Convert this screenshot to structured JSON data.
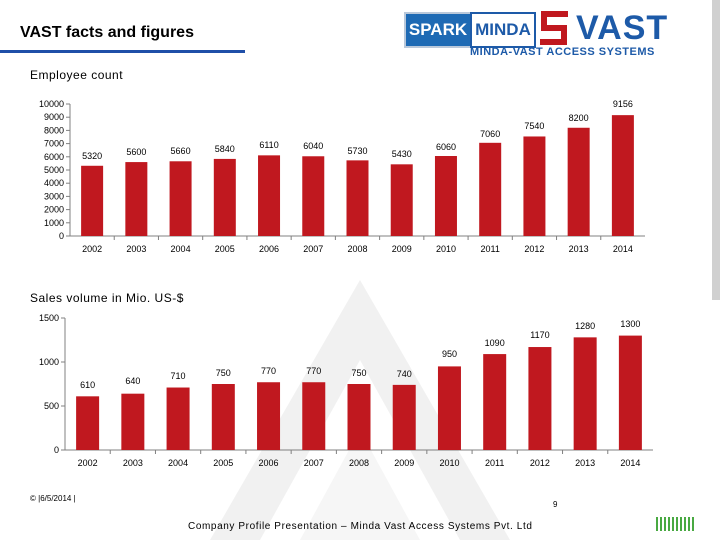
{
  "slide": {
    "title": "VAST facts and figures",
    "footer_date": "© |6/5/2014 |",
    "footer_page": "9",
    "footer_text": "Company Profile Presentation – Minda Vast Access Systems Pvt. Ltd"
  },
  "logo": {
    "spark": "SPARK",
    "minda": "MINDA",
    "vast": "VAST",
    "subtitle": "MINDA-VAST ACCESS SYSTEMS"
  },
  "colors": {
    "bar": "#c0181f",
    "accent_blue": "#1f4fa8",
    "axis": "#808080",
    "footer_green": "#49a942"
  },
  "chart_data": [
    {
      "type": "bar",
      "title": "Employee count",
      "categories": [
        "2002",
        "2003",
        "2004",
        "2005",
        "2006",
        "2007",
        "2008",
        "2009",
        "2010",
        "2011",
        "2012",
        "2013",
        "2014"
      ],
      "values": [
        5320,
        5600,
        5660,
        5840,
        6110,
        6040,
        5730,
        5430,
        6060,
        7060,
        7540,
        8200,
        9156
      ],
      "value_labels": [
        "5320",
        "5600",
        "5660",
        "5840",
        "6110",
        "6040",
        "5730",
        "5430",
        "6060",
        "7060",
        "7540",
        "8200",
        "9156"
      ],
      "ylim": [
        0,
        10000
      ],
      "yticks": [
        "0",
        "1000",
        "2000",
        "3000",
        "4000",
        "5000",
        "6000",
        "7000",
        "8000",
        "9000",
        "10000"
      ],
      "xlabel": "",
      "ylabel": "",
      "grid": false
    },
    {
      "type": "bar",
      "title": "Sales volume in Mio. US-$",
      "categories": [
        "2002",
        "2003",
        "2004",
        "2005",
        "2006",
        "2007",
        "2008",
        "2009",
        "2010",
        "2011",
        "2012",
        "2013",
        "2014"
      ],
      "values": [
        610,
        640,
        710,
        750,
        770,
        770,
        750,
        740,
        950,
        1090,
        1170,
        1280,
        1300
      ],
      "value_labels": [
        "610",
        "640",
        "710",
        "750",
        "770",
        "770",
        "750",
        "740",
        "950",
        "1090",
        "1170",
        "1280",
        "1300"
      ],
      "ylim": [
        0,
        1500
      ],
      "yticks": [
        "0",
        "500",
        "1000",
        "1500"
      ],
      "xlabel": "",
      "ylabel": "",
      "grid": false
    }
  ]
}
